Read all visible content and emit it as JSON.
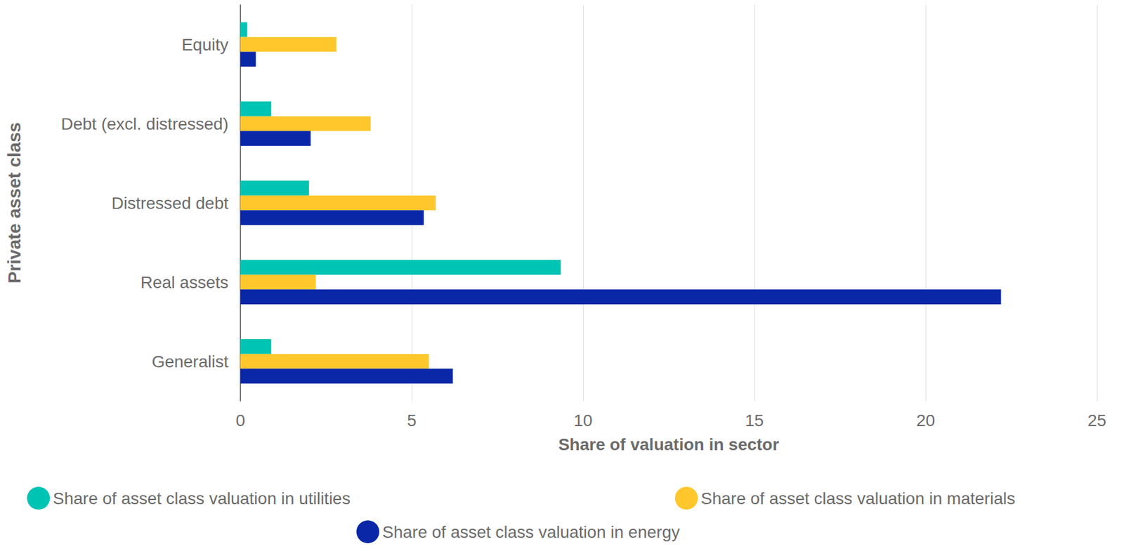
{
  "chart_data": {
    "type": "bar",
    "orientation": "horizontal",
    "categories": [
      "Equity",
      "Debt (excl. distressed)",
      "Distressed debt",
      "Real assets",
      "Generalist"
    ],
    "series": [
      {
        "name": "Share of asset class valuation in utilities",
        "color": "#00c4b3",
        "values": [
          0.2,
          0.9,
          2.0,
          9.35,
          0.9
        ]
      },
      {
        "name": "Share of asset class valuation in materials",
        "color": "#ffc72c",
        "values": [
          2.8,
          3.8,
          5.7,
          2.2,
          5.5
        ]
      },
      {
        "name": "Share of asset class valuation in energy",
        "color": "#0a27a8",
        "values": [
          0.45,
          2.05,
          5.35,
          22.2,
          6.2
        ]
      }
    ],
    "x_label": "Share of valuation in sector",
    "y_label": "Private asset class",
    "xlim": [
      0,
      25
    ],
    "xticks": [
      0,
      5,
      10,
      15,
      20,
      25
    ],
    "grid": true,
    "legend": "bottom"
  }
}
